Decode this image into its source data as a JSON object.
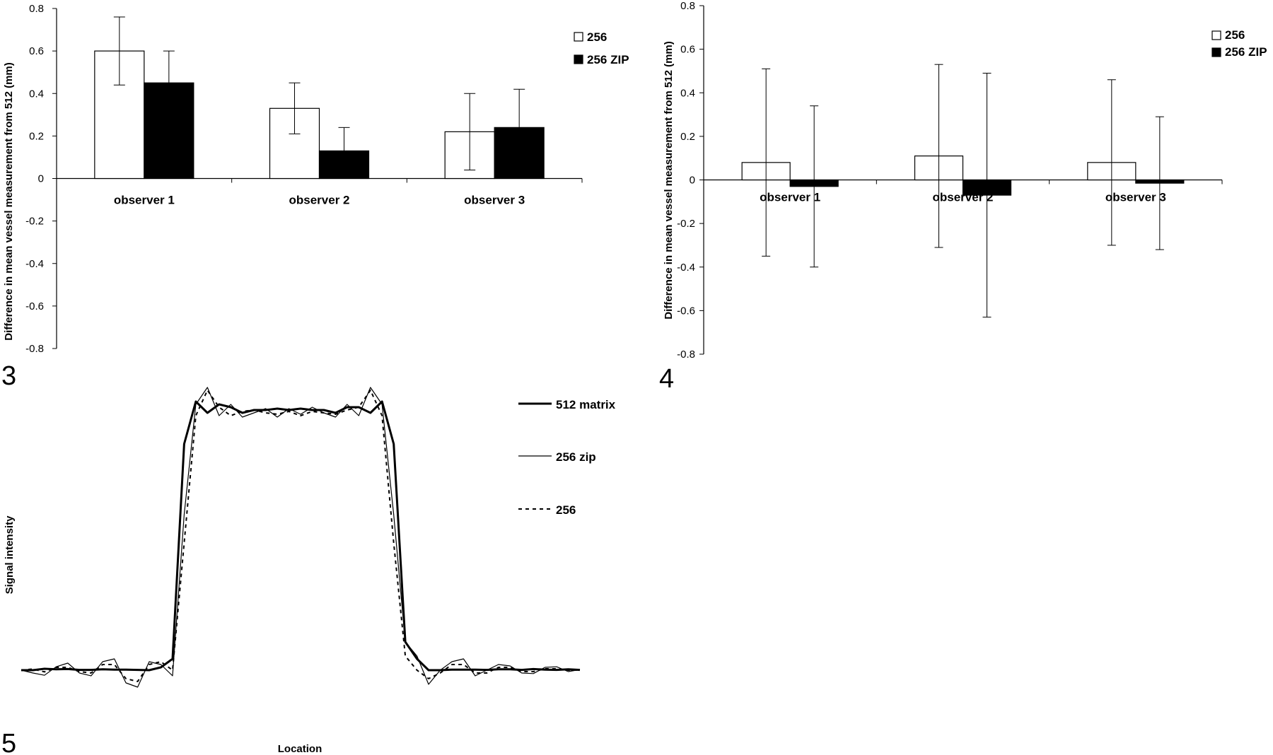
{
  "chart_data": [
    {
      "type": "bar",
      "figure_number": "3",
      "categories": [
        "observer 1",
        "observer 2",
        "observer 3"
      ],
      "series": [
        {
          "name": "256",
          "values": [
            0.6,
            0.33,
            0.22
          ],
          "errors": [
            0.16,
            0.12,
            0.18
          ],
          "fill": "#ffffff"
        },
        {
          "name": "256 ZIP",
          "values": [
            0.45,
            0.13,
            0.24
          ],
          "errors": [
            0.15,
            0.11,
            0.18
          ],
          "fill": "#000000"
        }
      ],
      "ylabel": "Difference in mean vessel measurement from 512 (mm)",
      "ylim": [
        -0.8,
        0.8
      ],
      "yticks": [
        "0.8",
        "0.6",
        "0.4",
        "0.2",
        "0",
        "-0.2",
        "-0.4",
        "-0.6",
        "-0.8"
      ],
      "legend": "top-right",
      "grid": false
    },
    {
      "type": "bar",
      "figure_number": "4",
      "categories": [
        "observer 1",
        "observer 2",
        "observer 3"
      ],
      "series": [
        {
          "name": "256",
          "values": [
            0.08,
            0.11,
            0.08
          ],
          "errors": [
            0.43,
            0.42,
            0.38
          ],
          "fill": "#ffffff"
        },
        {
          "name": "256 ZIP",
          "values": [
            -0.03,
            -0.07,
            -0.015
          ],
          "errors": [
            0.37,
            0.56,
            0.305
          ],
          "fill": "#000000"
        }
      ],
      "ylabel": "Difference in mean vessel measurement from 512 (mm)",
      "ylim": [
        -0.8,
        0.8
      ],
      "yticks": [
        "0.8",
        "0.6",
        "0.4",
        "0.2",
        "0",
        "-0.2",
        "-0.4",
        "-0.6",
        "-0.8"
      ],
      "legend": "top-right",
      "grid": false
    },
    {
      "type": "line",
      "figure_number": "5",
      "xlabel": "Location",
      "ylabel": "Signal intensity",
      "x": [
        0,
        1,
        2,
        3,
        4,
        5,
        6,
        7,
        8,
        9,
        10,
        11,
        12,
        13,
        14,
        15,
        16,
        17,
        18,
        19,
        20,
        21,
        22,
        23,
        24,
        25,
        26,
        27,
        28,
        29,
        30,
        31,
        32,
        33,
        34,
        35,
        36,
        37,
        38,
        39,
        40,
        41,
        42,
        43,
        44,
        45,
        46,
        47,
        48
      ],
      "series": [
        {
          "name": "512 matrix",
          "style": "solid-thick",
          "values": [
            0,
            0,
            0.005,
            0.003,
            0.004,
            0.001,
            0.001,
            0.003,
            0.002,
            0.002,
            0.001,
            0.0,
            0.01,
            0.04,
            0.8,
            0.95,
            0.91,
            0.94,
            0.93,
            0.91,
            0.92,
            0.92,
            0.925,
            0.92,
            0.925,
            0.92,
            0.92,
            0.91,
            0.93,
            0.93,
            0.91,
            0.95,
            0.8,
            0.1,
            0.04,
            0.0,
            0.0,
            0.002,
            0.002,
            0.002,
            0.001,
            0.003,
            0.003,
            0.001,
            0.004,
            0.002,
            0.001,
            0.003,
            0.001
          ]
        },
        {
          "name": "256 zip",
          "style": "solid-thin",
          "values": [
            0,
            -0.01,
            -0.018,
            0.012,
            0.025,
            -0.01,
            -0.02,
            0.03,
            0.04,
            -0.045,
            -0.06,
            0.03,
            0.02,
            -0.02,
            0.55,
            0.94,
            1.0,
            0.9,
            0.94,
            0.895,
            0.91,
            0.925,
            0.895,
            0.925,
            0.905,
            0.93,
            0.91,
            0.895,
            0.94,
            0.9,
            1.0,
            0.94,
            0.55,
            0.1,
            0.05,
            -0.05,
            0.0,
            0.03,
            0.04,
            -0.02,
            0.0,
            0.02,
            0.015,
            -0.01,
            -0.012,
            0.01,
            0.012,
            -0.005,
            0.002
          ]
        },
        {
          "name": "256",
          "style": "dashed",
          "values": [
            0,
            0.004,
            -0.006,
            0.01,
            0.01,
            -0.005,
            -0.01,
            0.02,
            0.02,
            -0.03,
            -0.04,
            0.02,
            0.03,
            0.0,
            0.45,
            0.9,
            0.99,
            0.93,
            0.9,
            0.915,
            0.92,
            0.91,
            0.905,
            0.915,
            0.9,
            0.915,
            0.91,
            0.905,
            0.92,
            0.93,
            0.99,
            0.9,
            0.45,
            0.05,
            0.0,
            -0.03,
            -0.01,
            0.02,
            0.02,
            -0.01,
            -0.01,
            0.01,
            0.01,
            -0.005,
            -0.005,
            0.005,
            0.005,
            0.0,
            0.0
          ]
        }
      ],
      "legend": "top-right",
      "grid": false
    }
  ]
}
